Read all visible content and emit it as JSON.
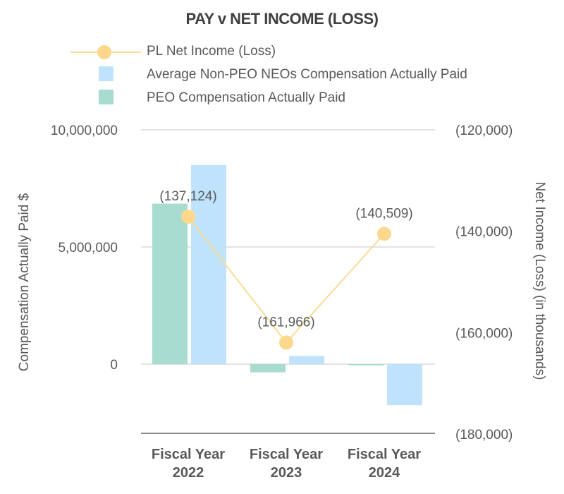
{
  "title": "PAY v NET INCOME (LOSS)",
  "legend": {
    "line": "PL Net Income (Loss)",
    "neo": "Average Non-PEO NEOs Compensation Actually Paid",
    "peo": "PEO Compensation Actually Paid"
  },
  "colors": {
    "peo": "#a8dcd0",
    "neo": "#bfe3fc",
    "line": "#f9dd97",
    "marker": "#fdd78c",
    "grid": "#e3e3e3",
    "axis": "#8c8c8c"
  },
  "chart_data": {
    "type": "bar",
    "categories": [
      [
        "Fiscal Year",
        "2022"
      ],
      [
        "Fiscal Year",
        "2023"
      ],
      [
        "Fiscal Year",
        "2024"
      ]
    ],
    "series": [
      {
        "name": "PEO Compensation Actually Paid",
        "axis": "left",
        "values": [
          6850000,
          -350000,
          -50000
        ]
      },
      {
        "name": "Average Non-PEO NEOs Compensation Actually Paid",
        "axis": "left",
        "values": [
          8500000,
          350000,
          -1750000
        ]
      },
      {
        "name": "PL Net Income (Loss)",
        "axis": "right",
        "type": "line",
        "values": [
          -137124,
          -161966,
          -140509
        ],
        "labels": [
          "(137,124)",
          "(161,966)",
          "(140,509)"
        ]
      }
    ],
    "ylabel": "Compensation Actually Paid $",
    "y2label": "Net Income (Loss) (in thousands)",
    "ylim": [
      -3000000,
      10000000
    ],
    "y2lim": [
      -180000,
      -120000
    ],
    "y_ticks": [
      {
        "value": 10000000,
        "label": "10,000,000"
      },
      {
        "value": 5000000,
        "label": "5,000,000"
      },
      {
        "value": 0,
        "label": "0"
      }
    ],
    "y2_ticks": [
      {
        "value": -120000,
        "label": "(120,000)"
      },
      {
        "value": -140000,
        "label": "(140,000)"
      },
      {
        "value": -160000,
        "label": "(160,000)"
      },
      {
        "value": -180000,
        "label": "(180,000)"
      }
    ],
    "grid": true,
    "legend_position": "top-left"
  }
}
